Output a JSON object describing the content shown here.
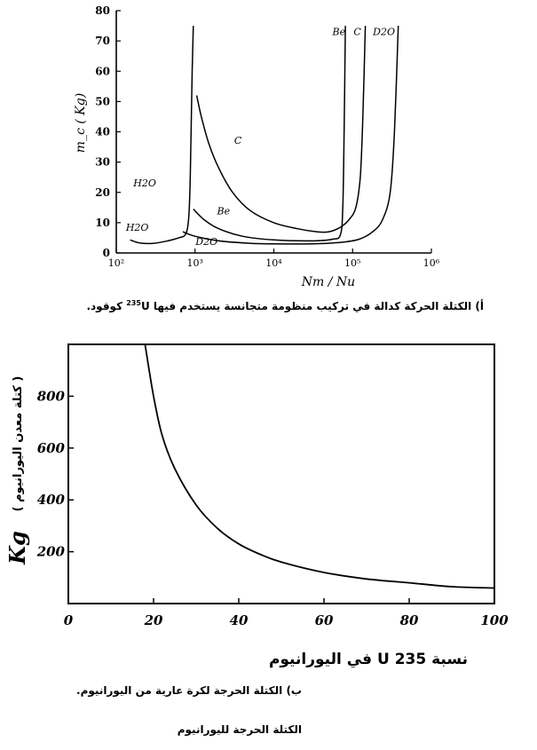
{
  "chart_data": [
    {
      "type": "line",
      "xscale": "log",
      "ylabel": "m_c ( Kg)",
      "xlabel": "Nm / Nu",
      "xlim": [
        100,
        1000000
      ],
      "ylim": [
        0,
        80
      ],
      "x_ticks": [
        {
          "v": 100,
          "label": "10²"
        },
        {
          "v": 1000,
          "label": "10³"
        },
        {
          "v": 10000,
          "label": "10⁴"
        },
        {
          "v": 100000,
          "label": "10⁵"
        },
        {
          "v": 1000000,
          "label": "10⁶"
        }
      ],
      "y_ticks": [
        0,
        10,
        20,
        30,
        40,
        50,
        60,
        70,
        80
      ],
      "grid": false,
      "series": [
        {
          "name": "H2O",
          "label_x": 230,
          "label_y": 22,
          "points": [
            [
              150,
              4.3
            ],
            [
              200,
              3.3
            ],
            [
              300,
              3.2
            ],
            [
              450,
              4
            ],
            [
              620,
              5
            ],
            [
              750,
              6
            ],
            [
              820,
              10
            ],
            [
              860,
              20
            ],
            [
              890,
              40
            ],
            [
              920,
              60
            ],
            [
              950,
              75
            ]
          ]
        },
        {
          "name": "C",
          "label_x": 3500,
          "label_y": 36,
          "points": [
            [
              1050,
              52
            ],
            [
              1200,
              45
            ],
            [
              1500,
              36
            ],
            [
              2000,
              28
            ],
            [
              3000,
              20
            ],
            [
              5000,
              14
            ],
            [
              10000,
              10
            ],
            [
              20000,
              8
            ],
            [
              35000,
              7
            ],
            [
              50000,
              7
            ],
            [
              70000,
              8.5
            ],
            [
              90000,
              11
            ],
            [
              110000,
              15
            ],
            [
              125000,
              25
            ],
            [
              135000,
              45
            ],
            [
              145000,
              75
            ]
          ]
        },
        {
          "name": "Be",
          "label_x": 2300,
          "label_y": 12.8,
          "points": [
            [
              950,
              14.5
            ],
            [
              1300,
              11
            ],
            [
              2000,
              8
            ],
            [
              4000,
              5.5
            ],
            [
              10000,
              4.3
            ],
            [
              30000,
              4
            ],
            [
              55000,
              4.5
            ],
            [
              70000,
              6
            ],
            [
              75000,
              15
            ],
            [
              78000,
              40
            ],
            [
              81000,
              75
            ]
          ]
        },
        {
          "name": "D2O",
          "label_x": 1400,
          "label_y": 2.7,
          "points": [
            [
              700,
              7
            ],
            [
              1000,
              5.5
            ],
            [
              2000,
              4
            ],
            [
              5000,
              3.2
            ],
            [
              10000,
              3
            ],
            [
              30000,
              3
            ],
            [
              70000,
              3.5
            ],
            [
              120000,
              4.5
            ],
            [
              180000,
              7
            ],
            [
              240000,
              11
            ],
            [
              300000,
              20
            ],
            [
              340000,
              40
            ],
            [
              380000,
              75
            ]
          ]
        }
      ],
      "top_labels": [
        {
          "text": "Be",
          "x": 67000,
          "y": 72
        },
        {
          "text": "C",
          "x": 115000,
          "y": 72
        },
        {
          "text": "D2O",
          "x": 250000,
          "y": 72
        }
      ]
    },
    {
      "type": "line",
      "ylabel": "Kg",
      "ylabel_arabic": "( كتلة معدن اليورانيوم )",
      "xlabel": "نسبة U 235 في اليورانيوم",
      "xlim": [
        0,
        100
      ],
      "ylim": [
        0,
        1000
      ],
      "x_ticks": [
        0,
        20,
        40,
        60,
        80,
        100
      ],
      "y_ticks": [
        200,
        400,
        600,
        800
      ],
      "grid": false,
      "series": [
        {
          "name": "critical-mass",
          "points": [
            [
              18,
              1000
            ],
            [
              20,
              800
            ],
            [
              22,
              650
            ],
            [
              25,
              520
            ],
            [
              30,
              380
            ],
            [
              35,
              290
            ],
            [
              40,
              230
            ],
            [
              45,
              190
            ],
            [
              50,
              160
            ],
            [
              60,
              120
            ],
            [
              70,
              95
            ],
            [
              80,
              80
            ],
            [
              90,
              65
            ],
            [
              100,
              60
            ]
          ]
        }
      ]
    }
  ],
  "captions": {
    "a_pre": "أ) الكتلة الحركة كدالة في تركيب منظومة متجانسة يستخدم فيها",
    "a_sup": "235",
    "a_post": "U كوقود.",
    "b": "ب) الكتلة الحرجة لكرة عارية من اليورانيوم.",
    "c": "الكتلة الحرجة لليورانيوم"
  }
}
